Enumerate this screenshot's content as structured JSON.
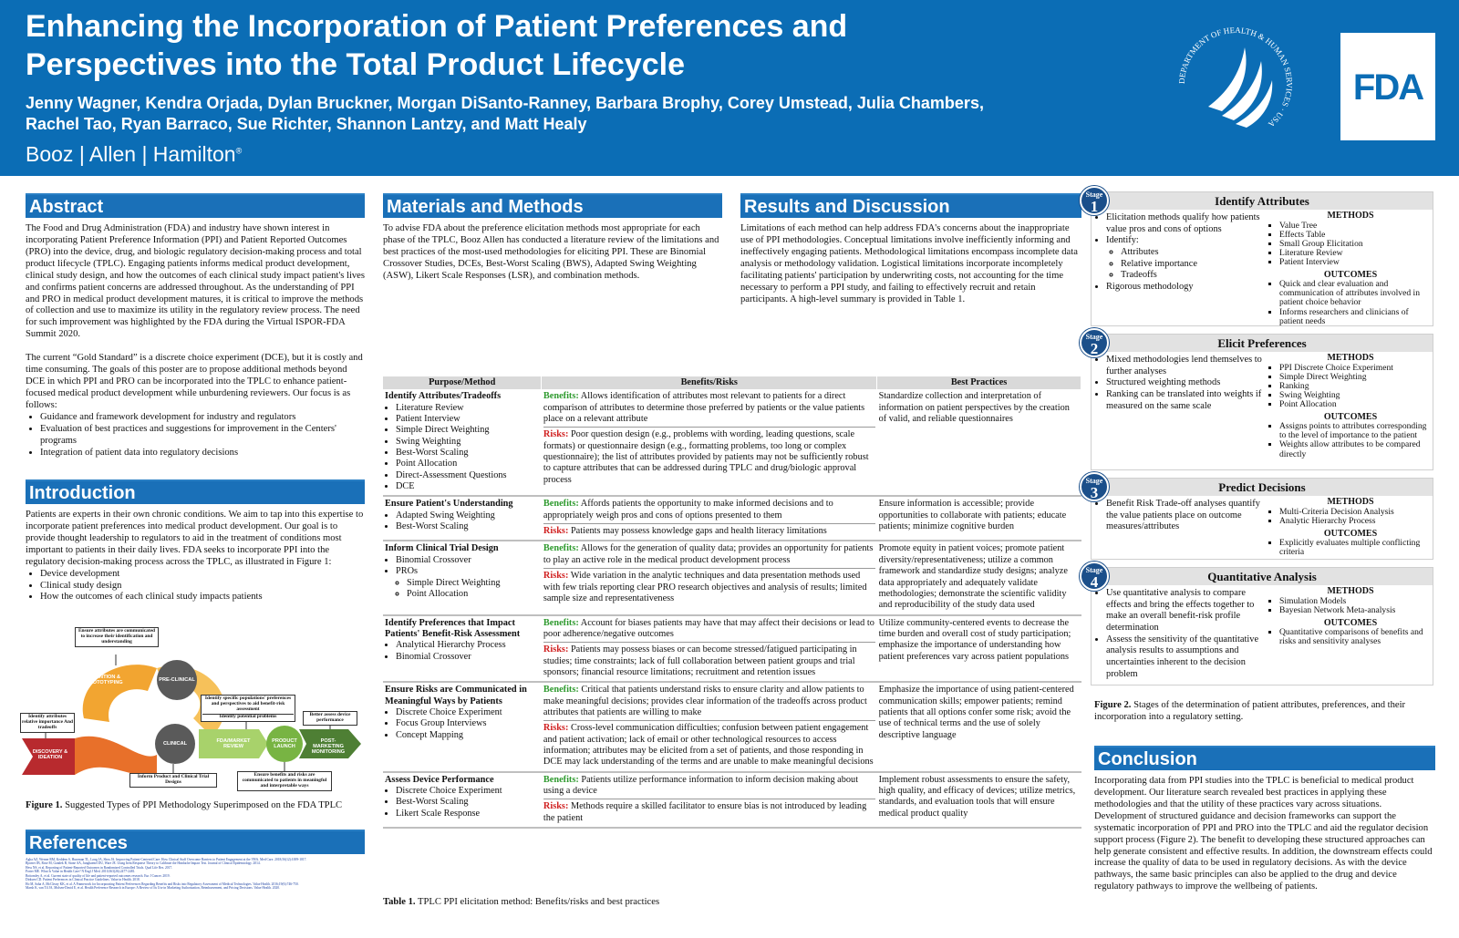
{
  "header": {
    "title_lines": [
      "Enhancing the Incorporation of Patient Preferences and",
      "Perspectives into the Total Product Lifecycle"
    ],
    "authors": [
      "Jenny Wagner, Kendra Orjada, Dylan Bruckner, Morgan DiSanto-Ranney, Barbara Brophy, Corey Umstead, Julia Chambers,",
      "Rachel Tao, Ryan Barraco, Sue Richter, Shannon Lantzy, and Matt Healy"
    ],
    "org": "Booz | Allen | Hamilton",
    "org_mark": "®",
    "seal_text": "DEPARTMENT OF HEALTH & HUMAN SERVICES · USA",
    "logo": "FDA"
  },
  "abstract": {
    "heading": "Abstract",
    "paragraphs": [
      "The Food and Drug Administration (FDA) and industry have shown interest in incorporating Patient Preference Information (PPI) and Patient Reported Outcomes (PRO) into the device, drug, and biologic regulatory decision-making process and total product lifecycle (TPLC). Engaging patients informs medical product development, clinical study design, and how the outcomes of each clinical study impact patient's lives and confirms patient concerns are addressed throughout. As the understanding of PPI and PRO in medical product development matures, it is critical to improve the methods of collection and use to maximize its utility in the regulatory review process. The need for such improvement was highlighted by the FDA during the Virtual ISPOR-FDA Summit 2020.",
      "The current “Gold Standard” is a discrete choice experiment (DCE), but it is costly and time consuming. The goals of this poster are to propose additional methods beyond DCE in which PPI and PRO can be incorporated into the TPLC to enhance patient-focused medical product development while unburdening reviewers. Our focus is as follows:"
    ],
    "bullets": [
      "Guidance and framework development for industry and regulators",
      "Evaluation of best practices and suggestions for improvement in the Centers' programs",
      "Integration of patient data into regulatory decisions"
    ]
  },
  "introduction": {
    "heading": "Introduction",
    "paragraph": "Patients are experts in their own chronic conditions. We aim to tap into this expertise to incorporate patient preferences into medical product development. Our goal is to provide thought leadership to regulators to aid in the treatment of conditions most important to patients in their daily lives. FDA seeks to incorporate PPI into the regulatory decision-making process across the TPLC, as illustrated in Figure 1:",
    "bullets": [
      "Device development",
      "Clinical study design",
      "How the outcomes of each clinical study impacts patients"
    ]
  },
  "figure1": {
    "callouts": [
      "Ensure attributes are communicated to increase their identification and understanding",
      "Identify specific populations' preferences and perspectives to aid benefit-risk assessment",
      "Identify potential problems",
      "Identify attributes relative importance And tradeoffs",
      "Better assess device performance",
      "Inform Product and Clinical Trial Designs",
      "Ensure benefits and risks are communicated to patients in meaningful and interpretable ways"
    ],
    "stages": [
      "DISCOVERY & IDEATION",
      "INVENTION & PROTOTYPING",
      "PRE-CLINICAL",
      "CLINICAL",
      "FDA/MARKET REVIEW",
      "PRODUCT LAUNCH",
      "POST-MARKETING MONITORING"
    ],
    "caption_label": "Figure 1.",
    "caption": " Suggested Types of PPI Methodology Superimposed on the FDA TPLC"
  },
  "references": {
    "heading": "References",
    "items": [
      "Agha AZ, Werner RM, Keddem S, Huseman TL, Long JA, Shea JA. Improving Patient-Centered Care: How Clinical Staff Overcome Barriers to Patient Engagement at the VHA. Med Care. 2018;56(12):1009-1017.",
      "Bjorner JB, Rose M, Gandek B, Stone AA, Junghaenel DU, Ware JE. Using Item Response Theory to Calibrate the Headache Impact Test. Journal of Clinical Epidemiology. 2014.",
      "Hess NS, et al. Reporting of Patient-Reported Outcomes in Randomized Controlled Trials. Qual Life Res. 2017.",
      "Porter ME. What Is Value in Health Care? N Engl J Med. 2010;363(26):2477-2481.",
      "Bottomley A, et al. Current state of quality of life and patient-reported outcomes research. Eur J Cancer. 2019.",
      "Dirksen CD. Patient Preferences in Clinical Practice Guidelines. Value in Health. 2018.",
      "Ho M, Saha A, McCleary KK, et al. A Framework for Incorporating Patient Preferences Regarding Benefits and Risks into Regulatory Assessment of Medical Technologies. Value Health. 2016;19(6):746-750.",
      "Marsh K, van Til JA, Molsen-David E, et al. Health Preference Research in Europe: A Review of Its Use in Marketing Authorization, Reimbursement, and Pricing Decisions. Value Health. 2020."
    ]
  },
  "methods": {
    "heading": "Materials and Methods",
    "paragraph": "To advise FDA about the preference elicitation methods most appropriate for each phase of the TPLC, Booz Allen has conducted a literature review of the limitations and best practices of the most-used methodologies for eliciting PPI. These are Binomial Crossover Studies, DCEs, Best-Worst Scaling (BWS), Adapted Swing Weighting (ASW), Likert Scale Responses (LSR), and combination methods."
  },
  "results": {
    "heading": "Results and Discussion",
    "paragraph": "Limitations of each method can help address FDA's concerns about the inappropriate use of PPI methodologies. Conceptual limitations involve inefficiently informing and ineffectively engaging patients. Methodological limitations encompass incomplete data analysis or methodology validation. Logistical limitations incorporate incompletely facilitating patients' participation by underwriting costs, not accounting for the time necessary to perform a PPI study, and failing to effectively recruit and retain participants. A high-level summary is provided in Table 1."
  },
  "table": {
    "headers": [
      "Purpose/Method",
      "Benefits/Risks",
      "Best Practices"
    ],
    "benefits_label": "Benefits:",
    "risks_label": "Risks:",
    "rows": [
      {
        "purpose": "Identify Attributes/Tradeoffs",
        "methods": [
          "Literature Review",
          "Patient Interview",
          "Simple Direct Weighting",
          "Swing Weighting",
          "Best-Worst Scaling",
          "Point Allocation",
          "Direct-Assessment Questions",
          "DCE"
        ],
        "benefits": " Allows identification of attributes most relevant to patients for a direct comparison of attributes to determine those preferred by patients or the value patients place on a relevant attribute",
        "risks": " Poor question design (e.g., problems with wording, leading questions, scale formats) or questionnaire design (e.g., formatting problems, too long or complex questionnaire); the list of attributes provided by patients may not be sufficiently robust to capture attributes that can be addressed during TPLC and drug/biologic approval process",
        "best": "Standardize collection and interpretation of information on patient perspectives by the creation of valid, and reliable questionnaires"
      },
      {
        "purpose": "Ensure Patient's Understanding",
        "methods": [
          "Adapted Swing Weighting",
          "Best-Worst Scaling"
        ],
        "benefits": " Affords patients the opportunity to make informed decisions and to appropriately weigh pros and cons of options presented to them",
        "risks": " Patients may possess knowledge gaps and health literacy limitations",
        "best": "Ensure information is accessible; provide opportunities to collaborate with patients; educate patients; minimize cognitive burden"
      },
      {
        "purpose": "Inform Clinical Trial Design",
        "methods": [
          "Binomial Crossover",
          {
            "text": "PROs",
            "sub": [
              "Simple Direct Weighting",
              "Point Allocation"
            ]
          }
        ],
        "benefits": " Allows for the generation of quality data; provides an opportunity for patients to play an active role in the medical product development process",
        "risks": " Wide variation in the analytic techniques and data presentation methods used with few trials reporting clear PRO research objectives and analysis of results; limited sample size and representativeness",
        "best": "Promote equity in patient voices; promote patient diversity/representativeness; utilize a common framework and standardize study designs; analyze data appropriately and adequately validate methodologies; demonstrate the scientific validity and reproducibility of the study data used"
      },
      {
        "purpose": "Identify Preferences that Impact Patients' Benefit-Risk Assessment",
        "methods": [
          "Analytical Hierarchy Process",
          "Binomial Crossover"
        ],
        "benefits": " Account for biases patients may have that may affect their decisions or lead to poor adherence/negative outcomes",
        "risks": " Patients may possess biases or can become stressed/fatigued participating in studies; time constraints; lack of full collaboration between patient groups and trial sponsors; financial resource limitations; recruitment and retention issues",
        "best": "Utilize community-centered events to decrease the time burden and overall cost of study participation; emphasize the importance of understanding how patient preferences vary across patient populations"
      },
      {
        "purpose": "Ensure Risks are Communicated in Meaningful Ways by Patients",
        "methods": [
          "Discrete Choice Experiment",
          "Focus Group Interviews",
          "Concept Mapping"
        ],
        "benefits": " Critical that patients understand risks to ensure clarity and allow patients to make meaningful decisions; provides clear information of the tradeoffs across product attributes that patients are willing to make",
        "risks": " Cross-level communication difficulties; confusion between patient engagement and patient activation; lack of email or other technological resources to access information; attributes may be elicited from a set of patients, and those responding in DCE may lack understanding of the terms and are unable to make meaningful decisions",
        "best": "Emphasize the importance of using patient-centered communication skills; empower patients; remind patients that all options confer some risk; avoid the use of technical terms and the use of solely descriptive language"
      },
      {
        "purpose": "Assess Device Performance",
        "methods": [
          "Discrete Choice Experiment",
          "Best-Worst Scaling",
          "Likert Scale Response"
        ],
        "benefits": " Patients utilize performance information to inform decision making about using a device",
        "risks": " Methods require a skilled facilitator to ensure bias is not introduced by leading the patient",
        "best": "Implement robust assessments to ensure the safety, high quality, and efficacy of devices; utilize metrics, standards, and evaluation tools that will ensure medical product quality"
      }
    ],
    "caption_label": "Table 1.",
    "caption": " TPLC PPI elicitation method: Benefits/risks and best practices"
  },
  "stage_panel": {
    "stage_label": "Stage",
    "methods_heading": "METHODS",
    "outcomes_heading": "OUTCOMES",
    "stages": [
      {
        "number": "1",
        "title": "Identify Attributes",
        "bullets": [
          "Elicitation methods qualify how patients value pros and cons of options",
          {
            "text": "Identify:",
            "sub": [
              "Attributes",
              "Relative importance",
              "Tradeoffs"
            ]
          },
          "Rigorous methodology"
        ],
        "methods": [
          "Value Tree",
          "Effects Table",
          "Small Group Elicitation",
          "Literature Review",
          "Patient Interview"
        ],
        "outcomes": [
          "Quick and clear evaluation and communication of attributes involved in patient choice behavior",
          "Informs researchers and clinicians of patient needs"
        ]
      },
      {
        "number": "2",
        "title": "Elicit Preferences",
        "bullets": [
          "Mixed methodologies lend themselves to further analyses",
          "Structured weighting methods",
          "Ranking can be translated into weights if measured on the same scale"
        ],
        "methods": [
          "PPI Discrete Choice Experiment",
          "Simple Direct Weighting",
          "Ranking",
          "Swing Weighting",
          "Point Allocation"
        ],
        "outcomes": [
          "Assigns points to attributes corresponding to the level of importance to the patient",
          "Weights allow attributes to be compared directly"
        ]
      },
      {
        "number": "3",
        "title": "Predict Decisions",
        "bullets": [
          "Benefit Risk Trade-off analyses quantify the value patients place on outcome measures/attributes"
        ],
        "methods": [
          "Multi-Criteria Decision Analysis",
          "Analytic Hierarchy Process"
        ],
        "outcomes": [
          "Explicitly evaluates multiple conflicting criteria"
        ]
      },
      {
        "number": "4",
        "title": "Quantitative Analysis",
        "bullets": [
          "Use quantitative analysis to compare effects and bring the effects together to make an overall benefit-risk profile determination",
          "Assess the sensitivity of the quantitative analysis results to assumptions and uncertainties inherent to the decision problem"
        ],
        "methods": [
          "Simulation Models",
          "Bayesian Network Meta-analysis"
        ],
        "outcomes": [
          "Quantitative comparisons of benefits and risks and sensitivity analyses"
        ]
      }
    ],
    "caption_label": "Figure 2.",
    "caption": " Stages of the determination of patient attributes, preferences, and their incorporation into a regulatory setting."
  },
  "conclusion": {
    "heading": "Conclusion",
    "paragraph": "Incorporating data from PPI studies into the TPLC is beneficial to medical product development. Our literature search revealed best practices in applying these methodologies and that the utility of these practices vary across situations. Development of structured guidance and decision frameworks can support the systematic incorporation of PPI and PRO into the TPLC and aid the regulator decision support process (Figure 2). The benefit to developing these structured approaches can help generate consistent and effective results. In addition, the downstream effects could increase the quality of data to be used in regulatory decisions. As with the device pathways, the same basic principles can also be applied to the drug and device regulatory pathways to improve the wellbeing of patients."
  }
}
